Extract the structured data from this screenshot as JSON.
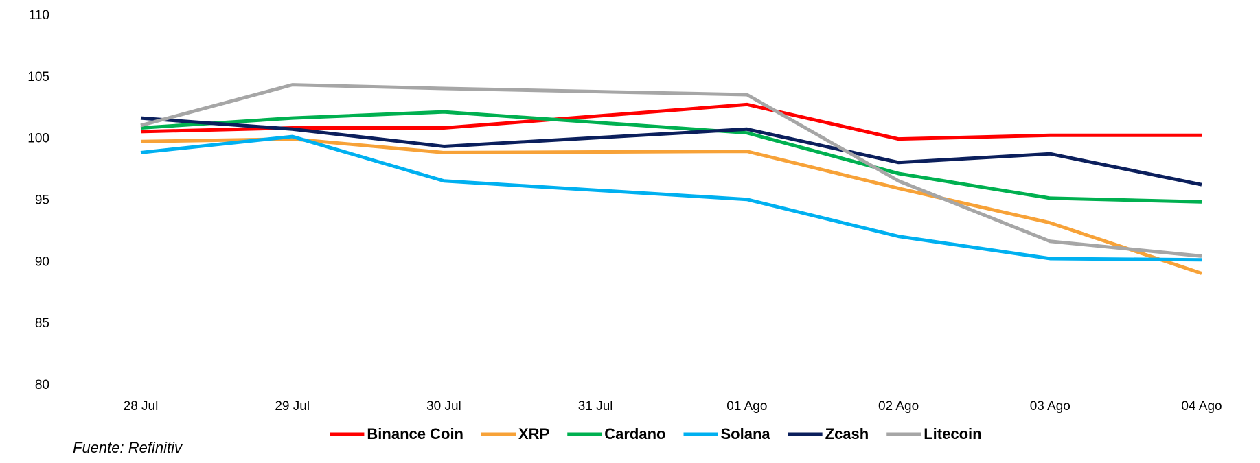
{
  "chart_data": {
    "type": "line",
    "categories": [
      "28 Jul",
      "29 Jul",
      "30 Jul",
      "31 Jul",
      "01 Ago",
      "02 Ago",
      "03 Ago",
      "04 Ago"
    ],
    "series": [
      {
        "name": "Binance Coin",
        "color": "#ff0000",
        "values": [
          100.6,
          100.9,
          100.9,
          101.85,
          102.8,
          100.0,
          100.3,
          100.3
        ]
      },
      {
        "name": "XRP",
        "color": "#f7a238",
        "values": [
          99.8,
          100.0,
          98.9,
          98.95,
          99.0,
          96.0,
          93.2,
          89.1
        ]
      },
      {
        "name": "Cardano",
        "color": "#00b050",
        "values": [
          100.9,
          101.7,
          102.2,
          101.35,
          100.5,
          97.2,
          95.2,
          94.9
        ]
      },
      {
        "name": "Solana",
        "color": "#00b0f0",
        "values": [
          98.9,
          100.2,
          96.6,
          95.85,
          95.1,
          92.1,
          90.3,
          90.2
        ]
      },
      {
        "name": "Zcash",
        "color": "#0b1f5c",
        "values": [
          101.7,
          100.8,
          99.4,
          100.1,
          100.8,
          98.1,
          98.8,
          96.3
        ]
      },
      {
        "name": "Litecoin",
        "color": "#a6a6a6",
        "values": [
          101.1,
          104.4,
          104.1,
          103.85,
          103.6,
          96.6,
          91.7,
          90.5
        ]
      }
    ],
    "ylim": [
      80,
      110
    ],
    "yticks": [
      80,
      85,
      90,
      95,
      100,
      105,
      110
    ],
    "grid": false,
    "legend": "bottom",
    "source": "Fuente: Refinitiv"
  }
}
